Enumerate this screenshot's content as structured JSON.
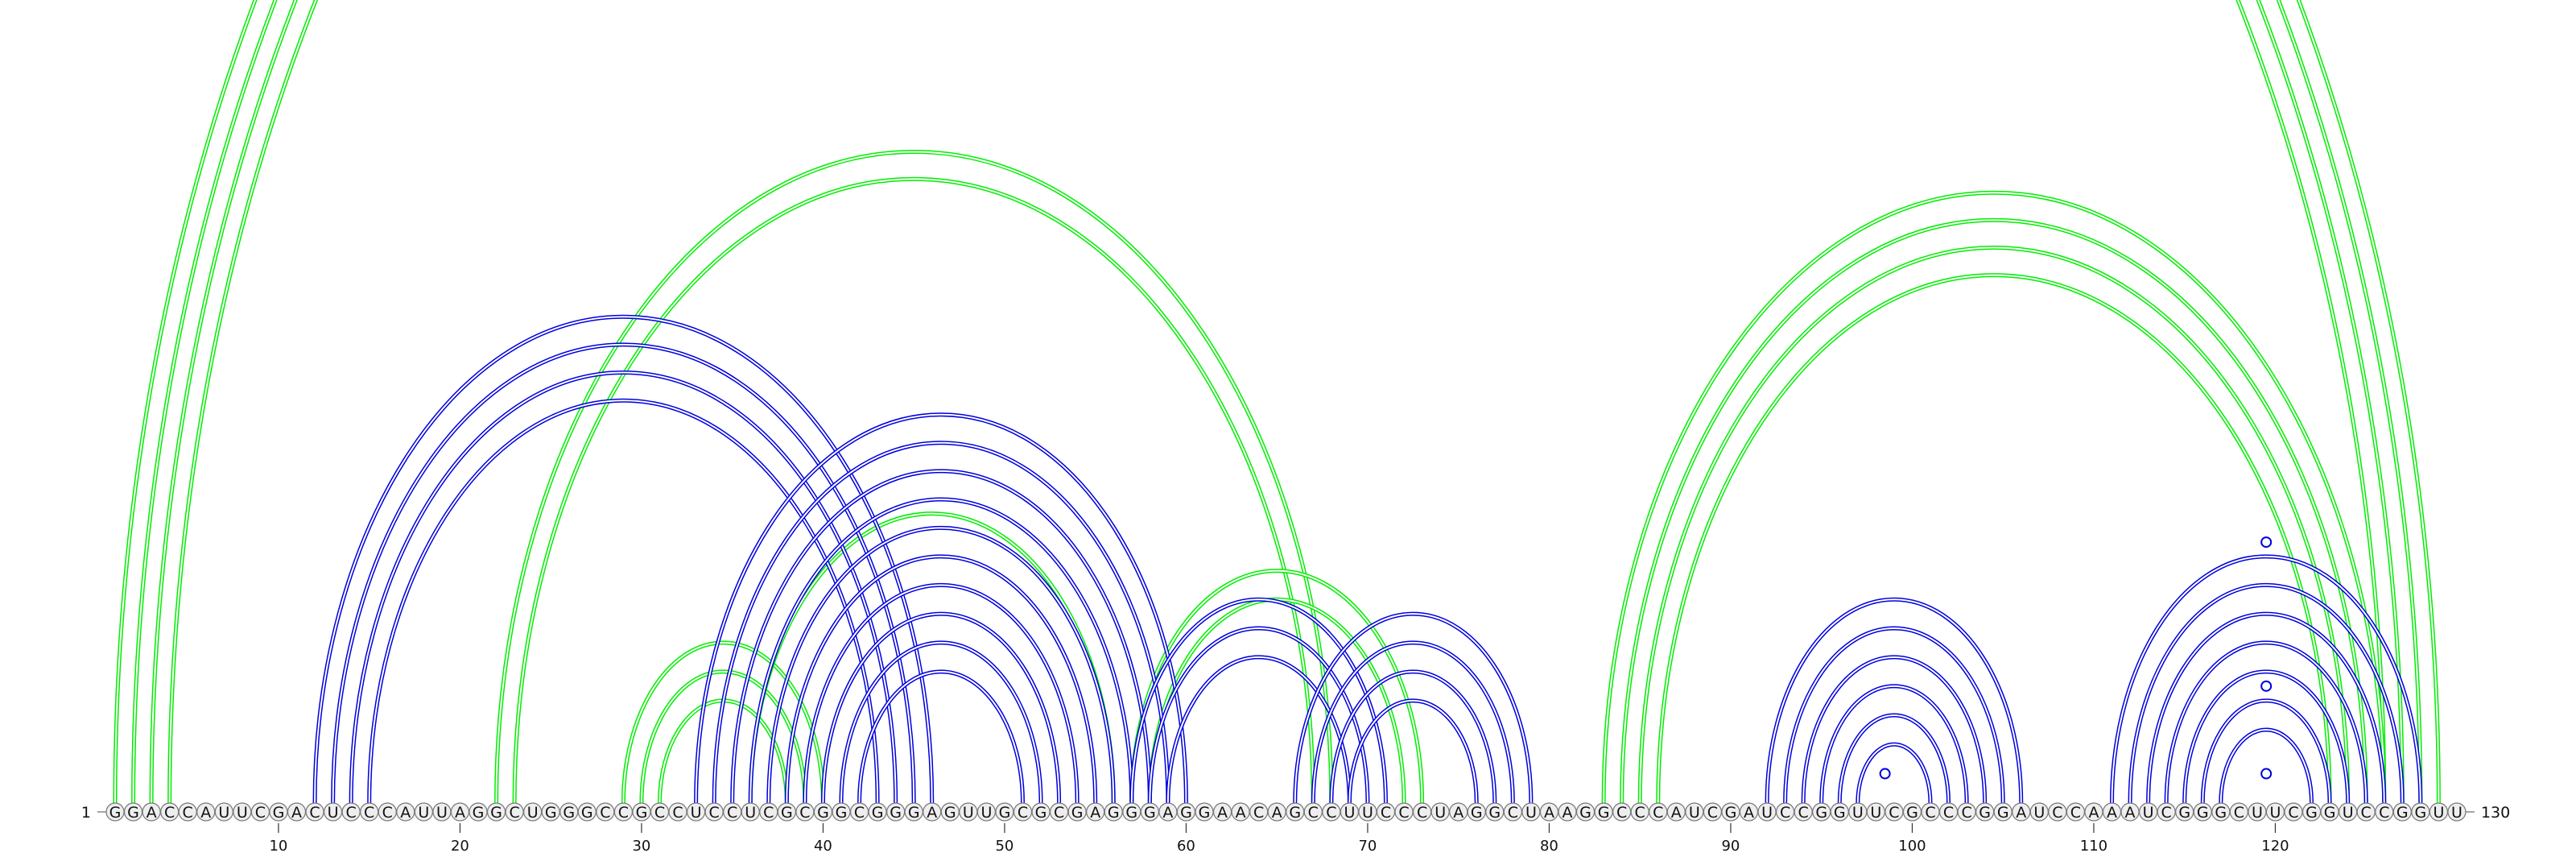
{
  "diagram": {
    "type": "rna-arc-diagram",
    "sequence": "GGACCAUUCGACUCCCAUUAGGCUGGGCCGCCUCCUCGCGGCGGGAGUUGCGCGAGGGAGGAACAGCCUUCCCUAGGCUAAGGCCCAUCGAUCCGGUUCGCCCGGAUCCAAAUCGGGCUUCGGUCCGGUUC",
    "length": 130,
    "start_label": "1",
    "end_label": "130",
    "ticks": [
      10,
      20,
      30,
      40,
      50,
      60,
      70,
      80,
      90,
      100,
      110,
      120
    ],
    "colors": {
      "predicted_arc": "#00ee00",
      "reference_arc": "#0000dd",
      "nucleotide_fill": "#eeeeee",
      "nucleotide_stroke": "#777777"
    },
    "green_helices": [
      {
        "i": 1,
        "j": 129,
        "len": 4
      },
      {
        "i": 22,
        "j": 68,
        "len": 2
      },
      {
        "i": 29,
        "j": 40,
        "len": 3
      },
      {
        "i": 36,
        "j": 56,
        "len": 1
      },
      {
        "i": 57,
        "j": 73,
        "len": 2
      },
      {
        "i": 83,
        "j": 126,
        "len": 4
      }
    ],
    "blue_helices": [
      {
        "i": 12,
        "j": 46,
        "len": 4
      },
      {
        "i": 33,
        "j": 60,
        "len": 10
      },
      {
        "i": 57,
        "j": 71,
        "len": 3
      },
      {
        "i": 66,
        "j": 79,
        "len": 4
      },
      {
        "i": 92,
        "j": 106,
        "len": 6
      },
      {
        "i": 111,
        "j": 128,
        "len": 7
      }
    ],
    "markers": [
      {
        "x": 65.5,
        "j_span": 128
      },
      {
        "x": 98.5,
        "j_span": 2
      },
      {
        "x": 119.5,
        "j_span": 2
      },
      {
        "x": 119.5,
        "j_span": 8
      },
      {
        "x": 119.5,
        "j_span": 18
      }
    ]
  }
}
